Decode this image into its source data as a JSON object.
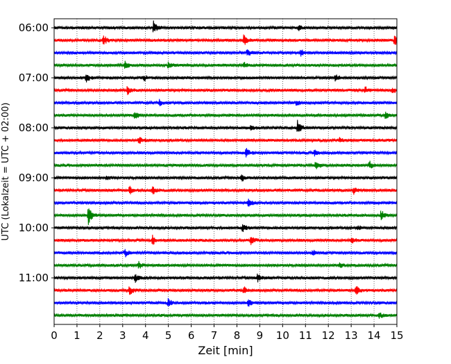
{
  "chart_data": {
    "type": "line",
    "title": "",
    "xlabel": "Zeit  [min]",
    "ylabel": "UTC (Lokalzeit = UTC + 02:00)",
    "xlim": [
      0,
      15
    ],
    "x_ticks": [
      "0",
      "1",
      "2",
      "3",
      "4",
      "5",
      "6",
      "7",
      "8",
      "9",
      "10",
      "11",
      "12",
      "13",
      "14",
      "15"
    ],
    "y_tick_labels": [
      "06:00",
      "07:00",
      "08:00",
      "09:00",
      "10:00",
      "11:00"
    ],
    "grid": "vertical dotted lines at each minute",
    "colors": [
      "#000000",
      "#ff0000",
      "#0000ff",
      "#008000"
    ],
    "traces": [
      {
        "start": "06:00",
        "color": "#000000",
        "events": [
          [
            4.35,
            0.55
          ],
          [
            10.7,
            0.25
          ]
        ]
      },
      {
        "start": "06:15",
        "color": "#ff0000",
        "events": [
          [
            2.15,
            0.45
          ],
          [
            8.3,
            0.45
          ],
          [
            14.9,
            0.45
          ]
        ]
      },
      {
        "start": "06:30",
        "color": "#0000ff",
        "events": [
          [
            8.45,
            0.35
          ],
          [
            10.8,
            0.3
          ]
        ]
      },
      {
        "start": "06:45",
        "color": "#008000",
        "events": [
          [
            3.1,
            0.3
          ],
          [
            5.0,
            0.3
          ],
          [
            8.3,
            0.25
          ]
        ]
      },
      {
        "start": "07:00",
        "color": "#000000",
        "events": [
          [
            1.4,
            0.35
          ],
          [
            3.9,
            0.3
          ],
          [
            12.3,
            0.35
          ]
        ]
      },
      {
        "start": "07:15",
        "color": "#ff0000",
        "events": [
          [
            3.2,
            0.4
          ],
          [
            13.6,
            0.35
          ],
          [
            14.8,
            0.3
          ]
        ]
      },
      {
        "start": "07:30",
        "color": "#0000ff",
        "events": [
          [
            4.6,
            0.25
          ],
          [
            10.6,
            0.2
          ]
        ]
      },
      {
        "start": "07:45",
        "color": "#008000",
        "events": [
          [
            3.5,
            0.4
          ],
          [
            14.5,
            0.35
          ]
        ]
      },
      {
        "start": "08:00",
        "color": "#000000",
        "events": [
          [
            10.65,
            0.6
          ],
          [
            8.6,
            0.25
          ]
        ]
      },
      {
        "start": "08:15",
        "color": "#ff0000",
        "events": [
          [
            3.7,
            0.35
          ],
          [
            12.5,
            0.3
          ]
        ]
      },
      {
        "start": "08:30",
        "color": "#0000ff",
        "events": [
          [
            8.4,
            0.4
          ],
          [
            11.4,
            0.3
          ]
        ]
      },
      {
        "start": "08:45",
        "color": "#008000",
        "events": [
          [
            11.45,
            0.45
          ],
          [
            13.8,
            0.35
          ]
        ]
      },
      {
        "start": "09:00",
        "color": "#000000",
        "events": [
          [
            8.2,
            0.4
          ],
          [
            2.3,
            0.2
          ]
        ]
      },
      {
        "start": "09:15",
        "color": "#ff0000",
        "events": [
          [
            3.3,
            0.35
          ],
          [
            4.3,
            0.35
          ],
          [
            13.1,
            0.3
          ]
        ]
      },
      {
        "start": "09:30",
        "color": "#0000ff",
        "events": [
          [
            8.5,
            0.45
          ]
        ]
      },
      {
        "start": "09:45",
        "color": "#008000",
        "events": [
          [
            1.5,
            0.85
          ],
          [
            14.3,
            0.5
          ]
        ]
      },
      {
        "start": "10:00",
        "color": "#000000",
        "events": [
          [
            8.25,
            0.35
          ],
          [
            13.3,
            0.2
          ]
        ]
      },
      {
        "start": "10:15",
        "color": "#ff0000",
        "events": [
          [
            4.3,
            0.4
          ],
          [
            8.6,
            0.45
          ],
          [
            13.0,
            0.3
          ]
        ]
      },
      {
        "start": "10:30",
        "color": "#0000ff",
        "events": [
          [
            3.1,
            0.35
          ],
          [
            11.3,
            0.25
          ]
        ]
      },
      {
        "start": "10:45",
        "color": "#008000",
        "events": [
          [
            3.7,
            0.35
          ],
          [
            12.5,
            0.25
          ]
        ]
      },
      {
        "start": "11:00",
        "color": "#000000",
        "events": [
          [
            3.55,
            0.35
          ],
          [
            8.9,
            0.35
          ]
        ]
      },
      {
        "start": "11:15",
        "color": "#ff0000",
        "events": [
          [
            3.3,
            0.4
          ],
          [
            8.3,
            0.3
          ],
          [
            13.2,
            0.45
          ]
        ]
      },
      {
        "start": "11:30",
        "color": "#0000ff",
        "events": [
          [
            5.0,
            0.35
          ],
          [
            8.5,
            0.3
          ]
        ]
      },
      {
        "start": "11:45",
        "color": "#008000",
        "events": [
          [
            14.2,
            0.35
          ]
        ]
      }
    ]
  }
}
